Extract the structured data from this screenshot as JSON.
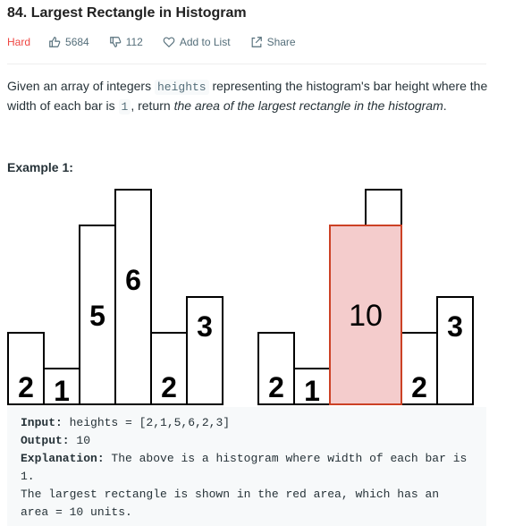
{
  "problem": {
    "title": "84. Largest Rectangle in Histogram",
    "difficulty": "Hard",
    "likes": "5684",
    "dislikes": "112",
    "add_to_list": "Add to List",
    "share": "Share"
  },
  "description": {
    "p1": "Given an array of integers ",
    "code1": "heights",
    "p2": " representing the histogram's bar height where the width of each bar is ",
    "code2": "1",
    "p3": ", return ",
    "em1": "the area of the largest rectangle in the histogram",
    "p4": "."
  },
  "example": {
    "title": "Example 1:",
    "input_label": "Input:",
    "input_value": " heights = [2,1,5,6,2,3]",
    "output_label": "Output:",
    "output_value": " 10",
    "explanation_label": "Explanation:",
    "explanation_value": " The above is a histogram where width of each bar is 1.",
    "explanation_line2": "The largest rectangle is shown in the red area, which has an area = 10 units."
  },
  "histogram": {
    "heights": [
      2,
      1,
      5,
      6,
      2,
      3
    ],
    "labels": [
      "2",
      "1",
      "5",
      "6",
      "2",
      "3"
    ],
    "largest_area_label": "10",
    "highlight_start_index": 2,
    "highlight_end_index": 3,
    "highlight_height": 5,
    "colors": {
      "highlight_fill": "#f4cccc",
      "highlight_stroke": "#cc4125",
      "bar_stroke": "#000000"
    }
  }
}
